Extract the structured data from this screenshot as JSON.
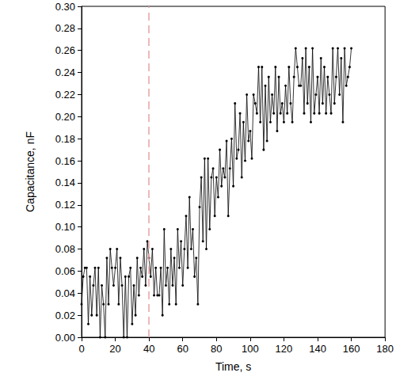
{
  "chart_data": {
    "type": "line",
    "x_label": "Time, s",
    "y_label": "Capacitance, nF",
    "color": "#000000",
    "marker": "circle",
    "line_style": "solid",
    "reference_x": 40,
    "xlim": [
      0,
      180
    ],
    "xticks": [
      0,
      20,
      40,
      60,
      80,
      100,
      120,
      140,
      160,
      180
    ],
    "ylim": [
      0,
      0.3
    ],
    "yticks": [
      {
        "value": 0,
        "label": "0.00"
      },
      {
        "value": 0.02,
        "label": "0.02"
      },
      {
        "value": 0.04,
        "label": "0.04"
      },
      {
        "value": 0.06,
        "label": "0.06"
      },
      {
        "value": 0.08,
        "label": "0.08"
      },
      {
        "value": 0.1,
        "label": "0.10"
      },
      {
        "value": 0.12,
        "label": "0.12"
      },
      {
        "value": 0.14,
        "label": "0.14"
      },
      {
        "value": 0.16,
        "label": "0.16"
      },
      {
        "value": 0.18,
        "label": "0.18"
      },
      {
        "value": 0.2,
        "label": "0.20"
      },
      {
        "value": 0.22,
        "label": "0.22"
      },
      {
        "value": 0.24,
        "label": "0.24"
      },
      {
        "value": 0.26,
        "label": "0.26"
      },
      {
        "value": 0.28,
        "label": "0.28"
      },
      {
        "value": 0.3,
        "label": "0.30"
      }
    ],
    "grid": false,
    "x": [
      0,
      1,
      2,
      3,
      4,
      5,
      6,
      7,
      8,
      9,
      10,
      11,
      12,
      13,
      14,
      15,
      16,
      17,
      18,
      19,
      20,
      21,
      22,
      23,
      24,
      25,
      26,
      27,
      28,
      29,
      30,
      31,
      32,
      33,
      34,
      35,
      36,
      37,
      38,
      39,
      40,
      41,
      42,
      43,
      44,
      45,
      46,
      47,
      48,
      49,
      50,
      51,
      52,
      53,
      54,
      55,
      56,
      57,
      58,
      59,
      60,
      61,
      62,
      63,
      64,
      65,
      66,
      67,
      68,
      69,
      70,
      71,
      72,
      73,
      74,
      75,
      76,
      77,
      78,
      79,
      80,
      81,
      82,
      83,
      84,
      85,
      86,
      87,
      88,
      89,
      90,
      91,
      92,
      93,
      94,
      95,
      96,
      97,
      98,
      99,
      100,
      101,
      102,
      103,
      104,
      105,
      106,
      107,
      108,
      109,
      110,
      111,
      112,
      113,
      114,
      115,
      116,
      117,
      118,
      119,
      120,
      121,
      122,
      123,
      124,
      125,
      126,
      127,
      128,
      129,
      130,
      131,
      132,
      133,
      134,
      135,
      136,
      137,
      138,
      139,
      140,
      141,
      142,
      143,
      144,
      145,
      146,
      147,
      148,
      149,
      150,
      151,
      152,
      153,
      154,
      155,
      156,
      157,
      158,
      159,
      160
    ],
    "values": [
      0.03,
      0.055,
      0.063,
      0.063,
      0.012,
      0.055,
      0.02,
      0.047,
      0.063,
      0.02,
      0.063,
      0,
      0.047,
      0.03,
      0,
      0.072,
      0.03,
      0.08,
      0.063,
      0.047,
      0.063,
      0.08,
      0.03,
      0.072,
      0.047,
      0,
      0.055,
      0,
      0.055,
      0.063,
      0.012,
      0.047,
      0.02,
      0.072,
      0.038,
      0.063,
      0.055,
      0.08,
      0.047,
      0.087,
      0.072,
      0.055,
      0.08,
      0.038,
      0.063,
      0.038,
      0.038,
      0.063,
      0.02,
      0.098,
      0.047,
      0.063,
      0.03,
      0.08,
      0.047,
      0.072,
      0.03,
      0.098,
      0.063,
      0.087,
      0.047,
      0.08,
      0.11,
      0.063,
      0.127,
      0.08,
      0.098,
      0.055,
      0.072,
      0.03,
      0.118,
      0.145,
      0.087,
      0.162,
      0.08,
      0.162,
      0.098,
      0.145,
      0.153,
      0.11,
      0.145,
      0.127,
      0.17,
      0.137,
      0.153,
      0.145,
      0.178,
      0.11,
      0.153,
      0.18,
      0.137,
      0.212,
      0.162,
      0.17,
      0.203,
      0.145,
      0.195,
      0.16,
      0.22,
      0.178,
      0.187,
      0.162,
      0.22,
      0.212,
      0.203,
      0.245,
      0.195,
      0.245,
      0.17,
      0.228,
      0.178,
      0.236,
      0.195,
      0.22,
      0.203,
      0.245,
      0.187,
      0.236,
      0.203,
      0.212,
      0.195,
      0.228,
      0.203,
      0.245,
      0.212,
      0.195,
      0.236,
      0.262,
      0.245,
      0.228,
      0.228,
      0.253,
      0.203,
      0.262,
      0.212,
      0.245,
      0.195,
      0.262,
      0.203,
      0.22,
      0.236,
      0.203,
      0.253,
      0.212,
      0.245,
      0.203,
      0.236,
      0.22,
      0.203,
      0.262,
      0.212,
      0.236,
      0.262,
      0.22,
      0.253,
      0.195,
      0.262,
      0.228,
      0.236,
      0.245,
      0.262
    ]
  }
}
